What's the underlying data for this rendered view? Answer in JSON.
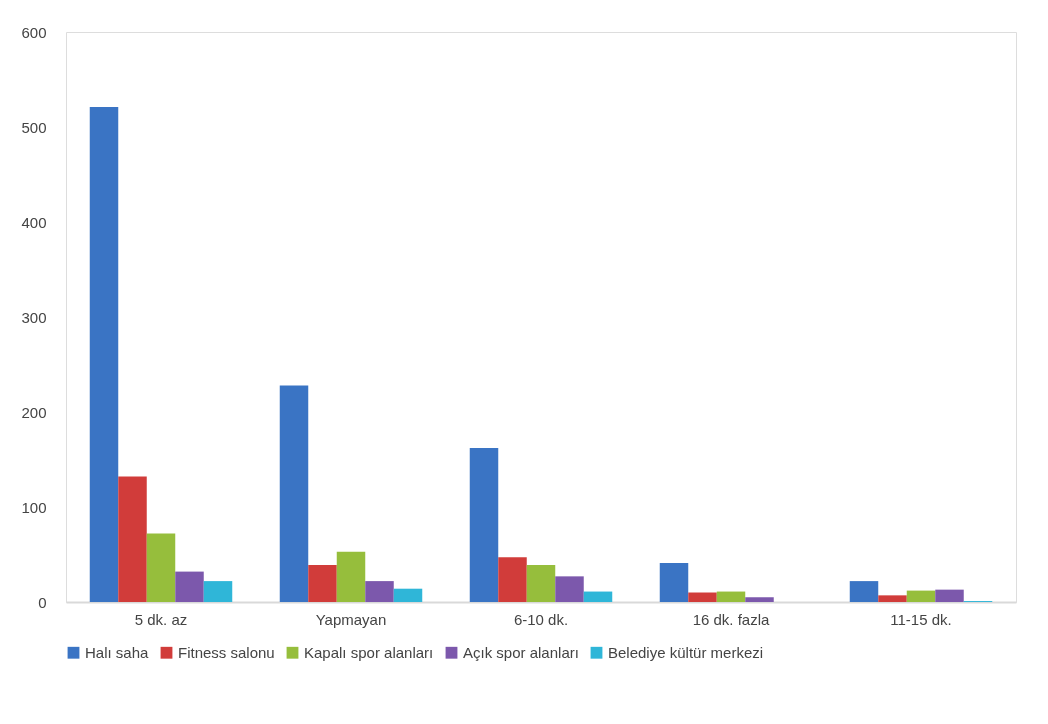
{
  "chart_data": {
    "type": "bar",
    "categories": [
      "5 dk. az",
      "Yapmayan",
      "6-10 dk.",
      "16 dk. fazla",
      "11-15 dk."
    ],
    "series": [
      {
        "name": "Halı saha",
        "color": "#3a74c4",
        "values": [
          521,
          228,
          162,
          41,
          22
        ]
      },
      {
        "name": "Fitness salonu",
        "color": "#d13c3a",
        "values": [
          132,
          39,
          47,
          10,
          7
        ]
      },
      {
        "name": "Kapalı spor alanları",
        "color": "#96be3c",
        "values": [
          72,
          53,
          39,
          11,
          12
        ]
      },
      {
        "name": "Açık spor alanları",
        "color": "#7c58ac",
        "values": [
          32,
          22,
          27,
          5,
          13
        ]
      },
      {
        "name": "Belediye kültür merkezi",
        "color": "#2fb6d8",
        "values": [
          22,
          14,
          11,
          0,
          1
        ]
      }
    ],
    "ylim": [
      0,
      600
    ],
    "yticks": [
      0,
      100,
      200,
      300,
      400,
      500,
      600
    ],
    "grid": false,
    "legend": "bottom"
  }
}
